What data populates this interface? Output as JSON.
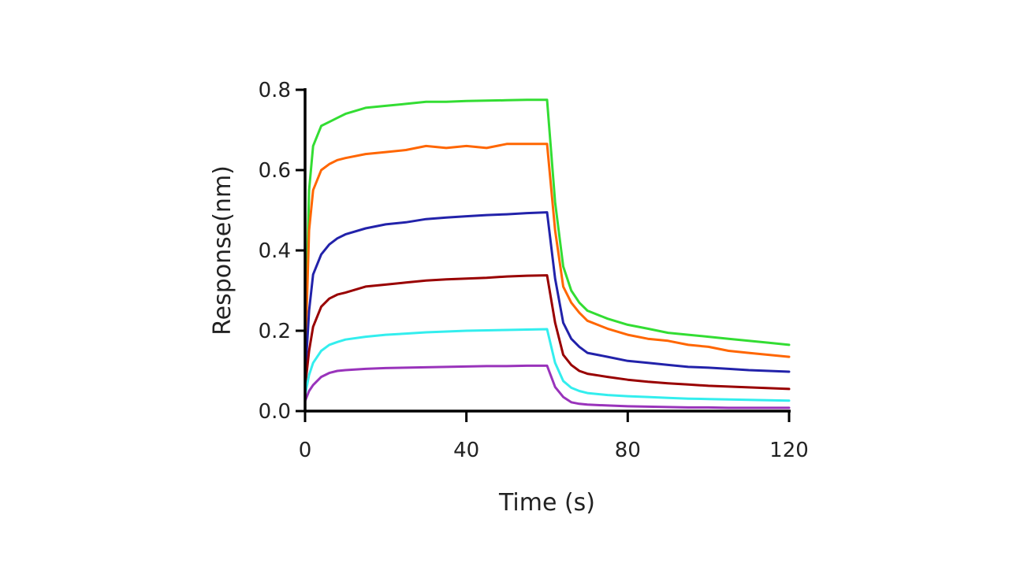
{
  "chart_data": {
    "type": "line",
    "xlabel": "Time (s)",
    "ylabel": "Response(nm)",
    "xlim": [
      0,
      120
    ],
    "ylim": [
      0,
      0.8
    ],
    "xticks": [
      0,
      40,
      80,
      120
    ],
    "xtick_labels": [
      "0",
      "40",
      "80",
      "120"
    ],
    "yticks": [
      0,
      0.2,
      0.4,
      0.6,
      0.8
    ],
    "ytick_labels": [
      "0.0",
      "0.2",
      "0.4",
      "0.6",
      "0.8"
    ],
    "grid": false,
    "x": [
      0,
      1,
      2,
      4,
      6,
      8,
      10,
      15,
      20,
      25,
      30,
      35,
      40,
      45,
      50,
      55,
      60,
      62,
      64,
      66,
      68,
      70,
      75,
      80,
      85,
      90,
      95,
      100,
      105,
      110,
      115,
      120
    ],
    "series": [
      {
        "color": "#33dd33",
        "values": [
          0.14,
          0.55,
          0.66,
          0.71,
          0.72,
          0.73,
          0.74,
          0.755,
          0.76,
          0.765,
          0.77,
          0.77,
          0.772,
          0.773,
          0.774,
          0.775,
          0.775,
          0.52,
          0.36,
          0.3,
          0.27,
          0.25,
          0.23,
          0.215,
          0.205,
          0.195,
          0.19,
          0.185,
          0.18,
          0.175,
          0.17,
          0.165
        ]
      },
      {
        "color": "#ff6600",
        "values": [
          0.12,
          0.45,
          0.55,
          0.6,
          0.615,
          0.625,
          0.63,
          0.64,
          0.645,
          0.65,
          0.66,
          0.655,
          0.66,
          0.655,
          0.665,
          0.665,
          0.665,
          0.45,
          0.31,
          0.27,
          0.245,
          0.225,
          0.205,
          0.19,
          0.18,
          0.175,
          0.165,
          0.16,
          0.15,
          0.145,
          0.14,
          0.135
        ]
      },
      {
        "color": "#2222aa",
        "values": [
          0.08,
          0.25,
          0.34,
          0.39,
          0.415,
          0.43,
          0.44,
          0.455,
          0.465,
          0.47,
          0.478,
          0.482,
          0.485,
          0.488,
          0.49,
          0.493,
          0.495,
          0.33,
          0.22,
          0.18,
          0.16,
          0.145,
          0.135,
          0.125,
          0.12,
          0.115,
          0.11,
          0.108,
          0.105,
          0.102,
          0.1,
          0.098
        ]
      },
      {
        "color": "#990000",
        "values": [
          0.06,
          0.15,
          0.21,
          0.26,
          0.28,
          0.29,
          0.295,
          0.31,
          0.315,
          0.32,
          0.325,
          0.328,
          0.33,
          0.332,
          0.335,
          0.337,
          0.338,
          0.22,
          0.14,
          0.115,
          0.1,
          0.093,
          0.085,
          0.078,
          0.073,
          0.069,
          0.066,
          0.063,
          0.061,
          0.059,
          0.057,
          0.055
        ]
      },
      {
        "color": "#33eeee",
        "values": [
          0.04,
          0.09,
          0.12,
          0.15,
          0.165,
          0.172,
          0.178,
          0.185,
          0.19,
          0.193,
          0.196,
          0.198,
          0.2,
          0.201,
          0.202,
          0.203,
          0.204,
          0.12,
          0.075,
          0.058,
          0.05,
          0.045,
          0.04,
          0.037,
          0.035,
          0.033,
          0.031,
          0.03,
          0.029,
          0.028,
          0.027,
          0.026
        ]
      },
      {
        "color": "#9933bb",
        "values": [
          0.025,
          0.05,
          0.065,
          0.085,
          0.095,
          0.1,
          0.102,
          0.105,
          0.107,
          0.108,
          0.109,
          0.11,
          0.111,
          0.112,
          0.112,
          0.113,
          0.113,
          0.06,
          0.035,
          0.022,
          0.018,
          0.016,
          0.014,
          0.012,
          0.011,
          0.01,
          0.009,
          0.009,
          0.008,
          0.008,
          0.008,
          0.008
        ]
      }
    ]
  }
}
